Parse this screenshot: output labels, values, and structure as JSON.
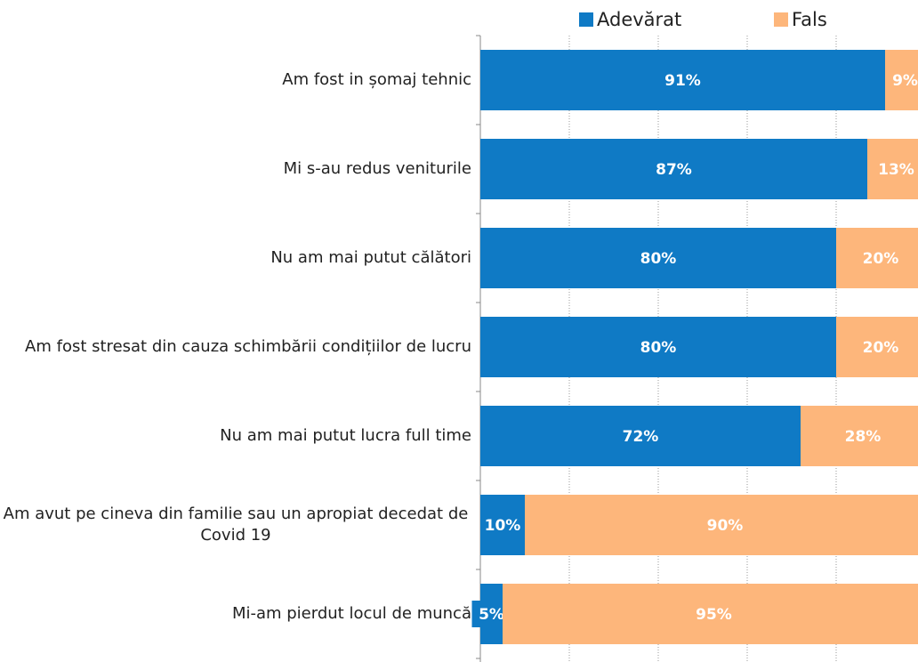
{
  "chart_data": {
    "type": "stacked_barh",
    "categories": [
      "Am fost in șomaj tehnic",
      "Mi s-au redus veniturile",
      "Nu am mai putut călători",
      "Am fost stresat din cauza schimbării condițiilor de lucru",
      "Nu am mai putut lucra full time",
      "Am avut pe cineva din familie sau un apropiat decedat de Covid 19",
      "Mi-am pierdut locul de muncă"
    ],
    "series": [
      {
        "name": "Adevărat",
        "color": "#0f7ac5",
        "values": [
          91,
          87,
          80,
          80,
          72,
          10,
          5
        ],
        "value_labels": [
          "91%",
          "87%",
          "80%",
          "80%",
          "72%",
          "10%",
          "5%"
        ]
      },
      {
        "name": "Fals",
        "color": "#fdb67b",
        "values": [
          9,
          13,
          20,
          20,
          28,
          90,
          95
        ],
        "value_labels": [
          "9%",
          "13%",
          "20%",
          "20%",
          "28%",
          "90%",
          "95%"
        ]
      }
    ],
    "xlim": [
      0,
      100
    ],
    "xticks": [
      0,
      20,
      40,
      60,
      80,
      100
    ],
    "grid": true,
    "legend": "top"
  }
}
